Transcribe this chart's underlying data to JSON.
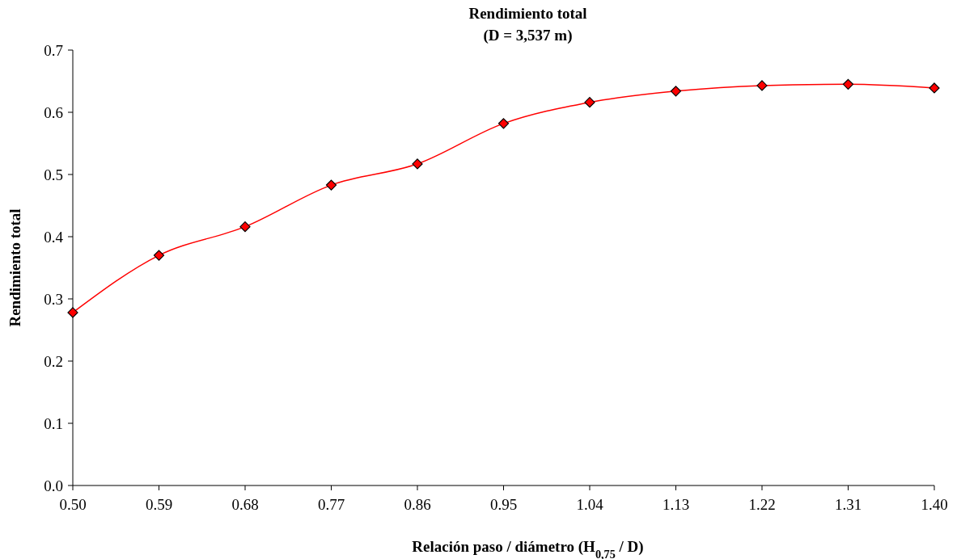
{
  "chart_data": {
    "type": "line",
    "title": "Rendimiento total",
    "subtitle": "(D = 3,537 m)",
    "xlabel": "Relación paso / diámetro (H$_{0,75}$ / D)",
    "ylabel": "Rendimiento total",
    "x": [
      0.5,
      0.59,
      0.68,
      0.77,
      0.86,
      0.95,
      1.04,
      1.13,
      1.22,
      1.31,
      1.4
    ],
    "series": [
      {
        "color": "#ff0000",
        "values": [
          0.278,
          0.37,
          0.416,
          0.483,
          0.517,
          0.582,
          0.616,
          0.634,
          0.643,
          0.645,
          0.639
        ]
      }
    ],
    "xlim": [
      0.5,
      1.4
    ],
    "xticks": [
      {
        "value": 0.5,
        "label": "0.50"
      },
      {
        "value": 0.59,
        "label": "0.59"
      },
      {
        "value": 0.68,
        "label": "0.68"
      },
      {
        "value": 0.77,
        "label": "0.77"
      },
      {
        "value": 0.86,
        "label": "0.86"
      },
      {
        "value": 0.95,
        "label": "0.95"
      },
      {
        "value": 1.04,
        "label": "1.04"
      },
      {
        "value": 1.13,
        "label": "1.13"
      },
      {
        "value": 1.22,
        "label": "1.22"
      },
      {
        "value": 1.31,
        "label": "1.31"
      },
      {
        "value": 1.4,
        "label": "1.40"
      }
    ],
    "ylim": [
      0,
      0.7
    ],
    "yticks": [
      {
        "value": 0,
        "label": "0.0"
      },
      {
        "value": 0.1,
        "label": "0.1"
      },
      {
        "value": 0.2,
        "label": "0.2"
      },
      {
        "value": 0.3,
        "label": "0.3"
      },
      {
        "value": 0.4,
        "label": "0.4"
      },
      {
        "value": 0.5,
        "label": "0.5"
      },
      {
        "value": 0.6,
        "label": "0.6"
      },
      {
        "value": 0.7,
        "label": "0.7"
      }
    ],
    "marker": "diamond",
    "line_style": "solid"
  }
}
